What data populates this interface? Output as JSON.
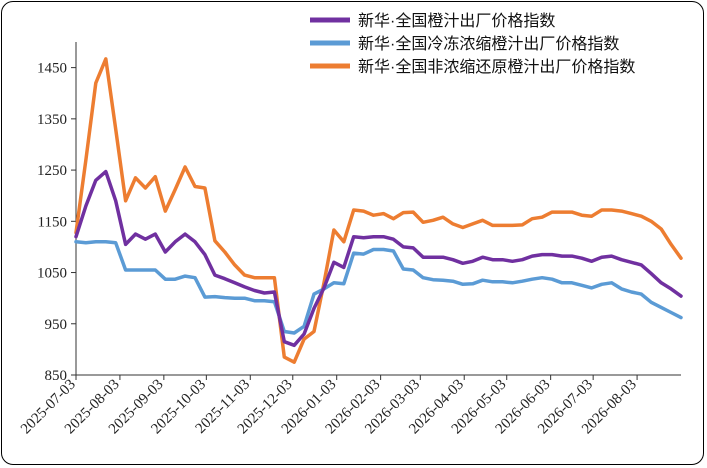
{
  "chart_data": {
    "type": "line",
    "title": "",
    "xlabel": "",
    "ylabel": "",
    "ylim": [
      850,
      1500
    ],
    "yticks": [
      850,
      950,
      1050,
      1150,
      1250,
      1350,
      1450
    ],
    "xtick_labels": [
      "2025-07-03",
      "2025-08-03",
      "2025-09-03",
      "2025-10-03",
      "2025-11-03",
      "2025-12-03",
      "2026-01-03",
      "2026-02-03",
      "2026-03-03",
      "2026-04-03",
      "2026-05-03",
      "2026-06-03",
      "2026-07-03",
      "2026-08-03"
    ],
    "grid": false,
    "legend_position": "top-right",
    "series": [
      {
        "name": "新华·全国橙汁出厂价格指数",
        "color": "#7030a0",
        "points": [
          [
            "2025-07-03",
            1120
          ],
          [
            "2025-07-10",
            1180
          ],
          [
            "2025-07-17",
            1230
          ],
          [
            "2025-07-24",
            1247
          ],
          [
            "2025-07-31",
            1190
          ],
          [
            "2025-08-07",
            1105
          ],
          [
            "2025-08-14",
            1125
          ],
          [
            "2025-08-21",
            1115
          ],
          [
            "2025-08-28",
            1125
          ],
          [
            "2025-09-04",
            1090
          ],
          [
            "2025-09-11",
            1110
          ],
          [
            "2025-09-18",
            1125
          ],
          [
            "2025-09-25",
            1110
          ],
          [
            "2025-10-02",
            1085
          ],
          [
            "2025-10-09",
            1045
          ],
          [
            "2025-10-16",
            1038
          ],
          [
            "2025-10-23",
            1030
          ],
          [
            "2025-10-30",
            1022
          ],
          [
            "2025-11-06",
            1015
          ],
          [
            "2025-11-13",
            1010
          ],
          [
            "2025-11-20",
            1012
          ],
          [
            "2025-11-27",
            915
          ],
          [
            "2025-12-04",
            908
          ],
          [
            "2025-12-11",
            930
          ],
          [
            "2025-12-18",
            980
          ],
          [
            "2025-12-25",
            1020
          ],
          [
            "2026-01-01",
            1070
          ],
          [
            "2026-01-08",
            1060
          ],
          [
            "2026-01-15",
            1120
          ],
          [
            "2026-01-22",
            1118
          ],
          [
            "2026-01-29",
            1120
          ],
          [
            "2026-02-05",
            1120
          ],
          [
            "2026-02-12",
            1115
          ],
          [
            "2026-02-19",
            1100
          ],
          [
            "2026-02-26",
            1098
          ],
          [
            "2026-03-05",
            1080
          ],
          [
            "2026-03-12",
            1080
          ],
          [
            "2026-03-19",
            1080
          ],
          [
            "2026-03-26",
            1075
          ],
          [
            "2026-04-02",
            1068
          ],
          [
            "2026-04-09",
            1072
          ],
          [
            "2026-04-16",
            1080
          ],
          [
            "2026-04-23",
            1075
          ],
          [
            "2026-04-30",
            1075
          ],
          [
            "2026-05-07",
            1072
          ],
          [
            "2026-05-14",
            1075
          ],
          [
            "2026-05-21",
            1082
          ],
          [
            "2026-05-28",
            1085
          ],
          [
            "2026-06-04",
            1085
          ],
          [
            "2026-06-11",
            1082
          ],
          [
            "2026-06-18",
            1082
          ],
          [
            "2026-06-25",
            1078
          ],
          [
            "2026-07-02",
            1072
          ],
          [
            "2026-07-09",
            1080
          ],
          [
            "2026-07-16",
            1082
          ],
          [
            "2026-07-23",
            1075
          ],
          [
            "2026-07-30",
            1070
          ],
          [
            "2026-08-06",
            1065
          ],
          [
            "2026-08-13",
            1048
          ],
          [
            "2026-08-20",
            1030
          ],
          [
            "2026-08-27",
            1018
          ],
          [
            "2026-09-03",
            1004
          ]
        ]
      },
      {
        "name": "新华·全国冷冻浓缩橙汁出厂价格指数",
        "color": "#5b9bd5",
        "points": [
          [
            "2025-07-03",
            1110
          ],
          [
            "2025-07-10",
            1108
          ],
          [
            "2025-07-17",
            1110
          ],
          [
            "2025-07-24",
            1110
          ],
          [
            "2025-07-31",
            1108
          ],
          [
            "2025-08-07",
            1055
          ],
          [
            "2025-08-14",
            1055
          ],
          [
            "2025-08-21",
            1055
          ],
          [
            "2025-08-28",
            1055
          ],
          [
            "2025-09-04",
            1037
          ],
          [
            "2025-09-11",
            1037
          ],
          [
            "2025-09-18",
            1043
          ],
          [
            "2025-09-25",
            1040
          ],
          [
            "2025-10-02",
            1002
          ],
          [
            "2025-10-09",
            1003
          ],
          [
            "2025-10-16",
            1001
          ],
          [
            "2025-10-23",
            1000
          ],
          [
            "2025-10-30",
            1000
          ],
          [
            "2025-11-06",
            995
          ],
          [
            "2025-11-13",
            995
          ],
          [
            "2025-11-20",
            993
          ],
          [
            "2025-11-27",
            935
          ],
          [
            "2025-12-04",
            932
          ],
          [
            "2025-12-11",
            945
          ],
          [
            "2025-12-18",
            1008
          ],
          [
            "2025-12-25",
            1018
          ],
          [
            "2026-01-01",
            1030
          ],
          [
            "2026-01-08",
            1028
          ],
          [
            "2026-01-15",
            1088
          ],
          [
            "2026-01-22",
            1086
          ],
          [
            "2026-01-29",
            1095
          ],
          [
            "2026-02-05",
            1095
          ],
          [
            "2026-02-12",
            1092
          ],
          [
            "2026-02-19",
            1057
          ],
          [
            "2026-02-26",
            1055
          ],
          [
            "2026-03-05",
            1040
          ],
          [
            "2026-03-12",
            1036
          ],
          [
            "2026-03-19",
            1035
          ],
          [
            "2026-03-26",
            1033
          ],
          [
            "2026-04-02",
            1027
          ],
          [
            "2026-04-09",
            1028
          ],
          [
            "2026-04-16",
            1035
          ],
          [
            "2026-04-23",
            1032
          ],
          [
            "2026-04-30",
            1032
          ],
          [
            "2026-05-07",
            1030
          ],
          [
            "2026-05-14",
            1033
          ],
          [
            "2026-05-21",
            1037
          ],
          [
            "2026-05-28",
            1040
          ],
          [
            "2026-06-04",
            1037
          ],
          [
            "2026-06-11",
            1030
          ],
          [
            "2026-06-18",
            1030
          ],
          [
            "2026-06-25",
            1025
          ],
          [
            "2026-07-02",
            1020
          ],
          [
            "2026-07-09",
            1027
          ],
          [
            "2026-07-16",
            1030
          ],
          [
            "2026-07-23",
            1018
          ],
          [
            "2026-07-30",
            1012
          ],
          [
            "2026-08-06",
            1008
          ],
          [
            "2026-08-13",
            992
          ],
          [
            "2026-08-20",
            982
          ],
          [
            "2026-08-27",
            972
          ],
          [
            "2026-09-03",
            962
          ]
        ]
      },
      {
        "name": "新华·全国非浓缩还原橙汁出厂价格指数",
        "color": "#ed7d31",
        "points": [
          [
            "2025-07-03",
            1128
          ],
          [
            "2025-07-10",
            1270
          ],
          [
            "2025-07-17",
            1420
          ],
          [
            "2025-07-24",
            1467
          ],
          [
            "2025-07-31",
            1330
          ],
          [
            "2025-08-07",
            1190
          ],
          [
            "2025-08-14",
            1235
          ],
          [
            "2025-08-21",
            1215
          ],
          [
            "2025-08-28",
            1237
          ],
          [
            "2025-09-04",
            1170
          ],
          [
            "2025-09-11",
            1212
          ],
          [
            "2025-09-18",
            1256
          ],
          [
            "2025-09-25",
            1218
          ],
          [
            "2025-10-02",
            1215
          ],
          [
            "2025-10-09",
            1112
          ],
          [
            "2025-10-16",
            1090
          ],
          [
            "2025-10-23",
            1065
          ],
          [
            "2025-10-30",
            1045
          ],
          [
            "2025-11-06",
            1040
          ],
          [
            "2025-11-13",
            1040
          ],
          [
            "2025-11-20",
            1040
          ],
          [
            "2025-11-27",
            885
          ],
          [
            "2025-12-04",
            875
          ],
          [
            "2025-12-11",
            920
          ],
          [
            "2025-12-18",
            935
          ],
          [
            "2025-12-25",
            1030
          ],
          [
            "2026-01-01",
            1133
          ],
          [
            "2026-01-08",
            1110
          ],
          [
            "2026-01-15",
            1172
          ],
          [
            "2026-01-22",
            1170
          ],
          [
            "2026-01-29",
            1162
          ],
          [
            "2026-02-05",
            1165
          ],
          [
            "2026-02-12",
            1155
          ],
          [
            "2026-02-19",
            1167
          ],
          [
            "2026-02-26",
            1168
          ],
          [
            "2026-03-05",
            1148
          ],
          [
            "2026-03-12",
            1152
          ],
          [
            "2026-03-19",
            1158
          ],
          [
            "2026-03-26",
            1145
          ],
          [
            "2026-04-02",
            1138
          ],
          [
            "2026-04-09",
            1145
          ],
          [
            "2026-04-16",
            1152
          ],
          [
            "2026-04-23",
            1142
          ],
          [
            "2026-04-30",
            1142
          ],
          [
            "2026-05-07",
            1142
          ],
          [
            "2026-05-14",
            1143
          ],
          [
            "2026-05-21",
            1155
          ],
          [
            "2026-05-28",
            1158
          ],
          [
            "2026-06-04",
            1168
          ],
          [
            "2026-06-11",
            1168
          ],
          [
            "2026-06-18",
            1168
          ],
          [
            "2026-06-25",
            1162
          ],
          [
            "2026-07-02",
            1160
          ],
          [
            "2026-07-09",
            1172
          ],
          [
            "2026-07-16",
            1172
          ],
          [
            "2026-07-23",
            1170
          ],
          [
            "2026-07-30",
            1165
          ],
          [
            "2026-08-06",
            1160
          ],
          [
            "2026-08-13",
            1150
          ],
          [
            "2026-08-20",
            1135
          ],
          [
            "2026-08-27",
            1105
          ],
          [
            "2026-09-03",
            1078
          ]
        ]
      }
    ]
  }
}
